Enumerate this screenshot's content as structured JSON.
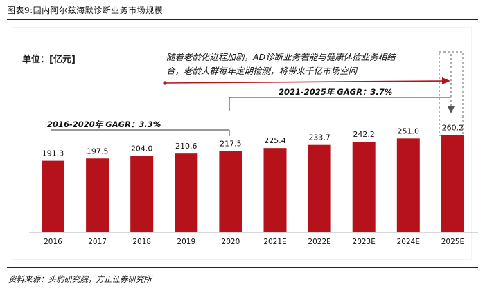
{
  "header": {
    "title": "图表9:国内阿尔兹海默诊断业务市场规模"
  },
  "footer": {
    "source": "资料来源：头豹研究院，方正证券研究所"
  },
  "chart_data": {
    "type": "bar",
    "unit_label": "单位：[亿元]",
    "categories": [
      "2016",
      "2017",
      "2018",
      "2019",
      "2020",
      "2021E",
      "2022E",
      "2023E",
      "2024E",
      "2025E"
    ],
    "values": [
      191.3,
      197.5,
      204.0,
      210.6,
      217.5,
      225.4,
      233.7,
      242.2,
      251.0,
      260.2
    ],
    "value_labels": [
      "191.3",
      "197.5",
      "204.0",
      "210.6",
      "217.5",
      "225.4",
      "233.7",
      "242.2",
      "251.0",
      "260.2"
    ],
    "ylim": [
      0,
      300
    ],
    "bar_color": "#b5121b",
    "annotations": {
      "cagr_2016_2020": "2016-2020年   GAGR：3.3%",
      "cagr_2021_2025": "2021-2025年   GAGR：3.7%",
      "note_line1": "随着老龄化进程加剧，AD诊断业务若能与健康体检业务相结",
      "note_line2": "合，老龄人群每年定期检测，将带来千亿市场空间"
    }
  }
}
